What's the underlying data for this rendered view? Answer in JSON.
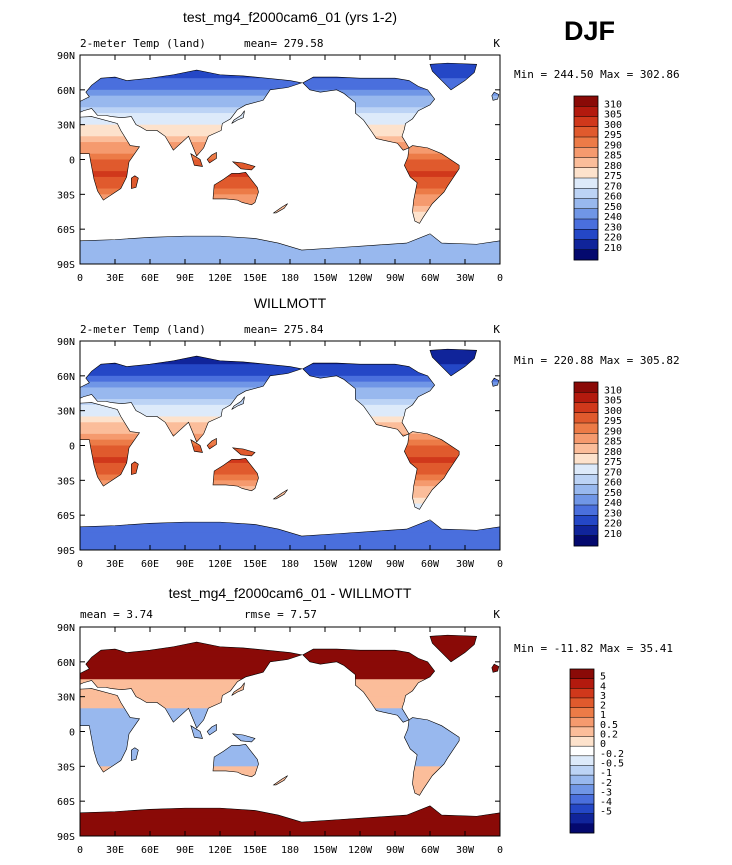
{
  "season": "DJF",
  "chart_data": [
    {
      "type": "heatmap",
      "title": "test_mg4_f2000cam6_01 (yrs 1-2)",
      "left_label": "2-meter Temp (land)",
      "mean_text": "mean= 279.58",
      "units": "K",
      "minmax_text": "Min = 244.50 Max = 302.86",
      "colorbar_labels": [
        "310",
        "305",
        "300",
        "295",
        "290",
        "285",
        "280",
        "275",
        "270",
        "260",
        "250",
        "240",
        "230",
        "220",
        "210"
      ],
      "colorbar_colors": [
        "#8a0a07",
        "#b31a0e",
        "#d0381b",
        "#e05a2d",
        "#ec7b47",
        "#f59a6e",
        "#fbbd9a",
        "#fde2cc",
        "#ddeafa",
        "#bcd3f5",
        "#98b8ee",
        "#7096e6",
        "#4a6fdd",
        "#2447c6",
        "#10249a",
        "#04096e"
      ],
      "palette": [
        "#2447c6",
        "#4a6fdd",
        "#7096e6",
        "#98b8ee",
        "#bcd3f5",
        "#ddeafa",
        "#fde2cc",
        "#fbbd9a",
        "#f59a6e",
        "#ec7b47",
        "#e05a2d",
        "#d0381b"
      ],
      "lat_ticks": [
        "90N",
        "60N",
        "30N",
        "0",
        "30S",
        "60S",
        "90S"
      ],
      "lon_ticks": [
        "0",
        "30E",
        "60E",
        "90E",
        "120E",
        "150E",
        "180",
        "150W",
        "120W",
        "90W",
        "60W",
        "30W",
        "0"
      ],
      "lat_range": [
        -90,
        90
      ],
      "lon_range": [
        0,
        360
      ]
    },
    {
      "type": "heatmap",
      "title": "WILLMOTT",
      "left_label": "2-meter Temp (land)",
      "mean_text": "mean= 275.84",
      "units": "K",
      "minmax_text": "Min = 220.88 Max = 305.82",
      "colorbar_labels": [
        "310",
        "305",
        "300",
        "295",
        "290",
        "285",
        "280",
        "275",
        "270",
        "260",
        "250",
        "240",
        "230",
        "220",
        "210"
      ],
      "colorbar_colors": [
        "#8a0a07",
        "#b31a0e",
        "#d0381b",
        "#e05a2d",
        "#ec7b47",
        "#f59a6e",
        "#fbbd9a",
        "#fde2cc",
        "#ddeafa",
        "#bcd3f5",
        "#98b8ee",
        "#7096e6",
        "#4a6fdd",
        "#2447c6",
        "#10249a",
        "#04096e"
      ],
      "palette": [
        "#10249a",
        "#2447c6",
        "#4a6fdd",
        "#7096e6",
        "#98b8ee",
        "#bcd3f5",
        "#ddeafa",
        "#fde2cc",
        "#fbbd9a",
        "#f59a6e",
        "#ec7b47",
        "#e05a2d",
        "#d0381b"
      ],
      "lat_ticks": [
        "90N",
        "60N",
        "30N",
        "0",
        "30S",
        "60S",
        "90S"
      ],
      "lon_ticks": [
        "0",
        "30E",
        "60E",
        "90E",
        "120E",
        "150E",
        "180",
        "150W",
        "120W",
        "90W",
        "60W",
        "30W",
        "0"
      ],
      "lat_range": [
        -90,
        90
      ],
      "lon_range": [
        0,
        360
      ]
    },
    {
      "type": "heatmap",
      "title": "test_mg4_f2000cam6_01 - WILLMOTT",
      "left_label": "mean =   3.74",
      "mean_text": "rmse =   7.57",
      "units": "K",
      "minmax_text": "Min = -11.82 Max =  35.41",
      "colorbar_labels": [
        "5",
        "4",
        "3",
        "2",
        "1",
        "0.5",
        "0.2",
        "0",
        "-0.2",
        "-0.5",
        "-1",
        "-2",
        "-3",
        "-4",
        "-5"
      ],
      "colorbar_colors": [
        "#8a0a07",
        "#b31a0e",
        "#d0381b",
        "#e05a2d",
        "#ec7b47",
        "#f59a6e",
        "#fbbd9a",
        "#fde2cc",
        "#ffffff",
        "#ddeafa",
        "#bcd3f5",
        "#98b8ee",
        "#7096e6",
        "#4a6fdd",
        "#2447c6",
        "#10249a",
        "#04096e"
      ],
      "palette": [
        "#2447c6",
        "#4a6fdd",
        "#7096e6",
        "#98b8ee",
        "#bcd3f5",
        "#ddeafa",
        "#fbbd9a",
        "#f59a6e",
        "#ec7b47",
        "#e05a2d",
        "#d0381b",
        "#8a0a07"
      ],
      "lat_ticks": [
        "90N",
        "60N",
        "30N",
        "0",
        "30S",
        "60S",
        "90S"
      ],
      "lon_ticks": [
        "0",
        "30E",
        "60E",
        "90E",
        "120E",
        "150E",
        "180",
        "150W",
        "120W",
        "90W",
        "60W",
        "30W",
        "0"
      ],
      "lat_range": [
        -90,
        90
      ],
      "lon_range": [
        0,
        360
      ]
    }
  ]
}
